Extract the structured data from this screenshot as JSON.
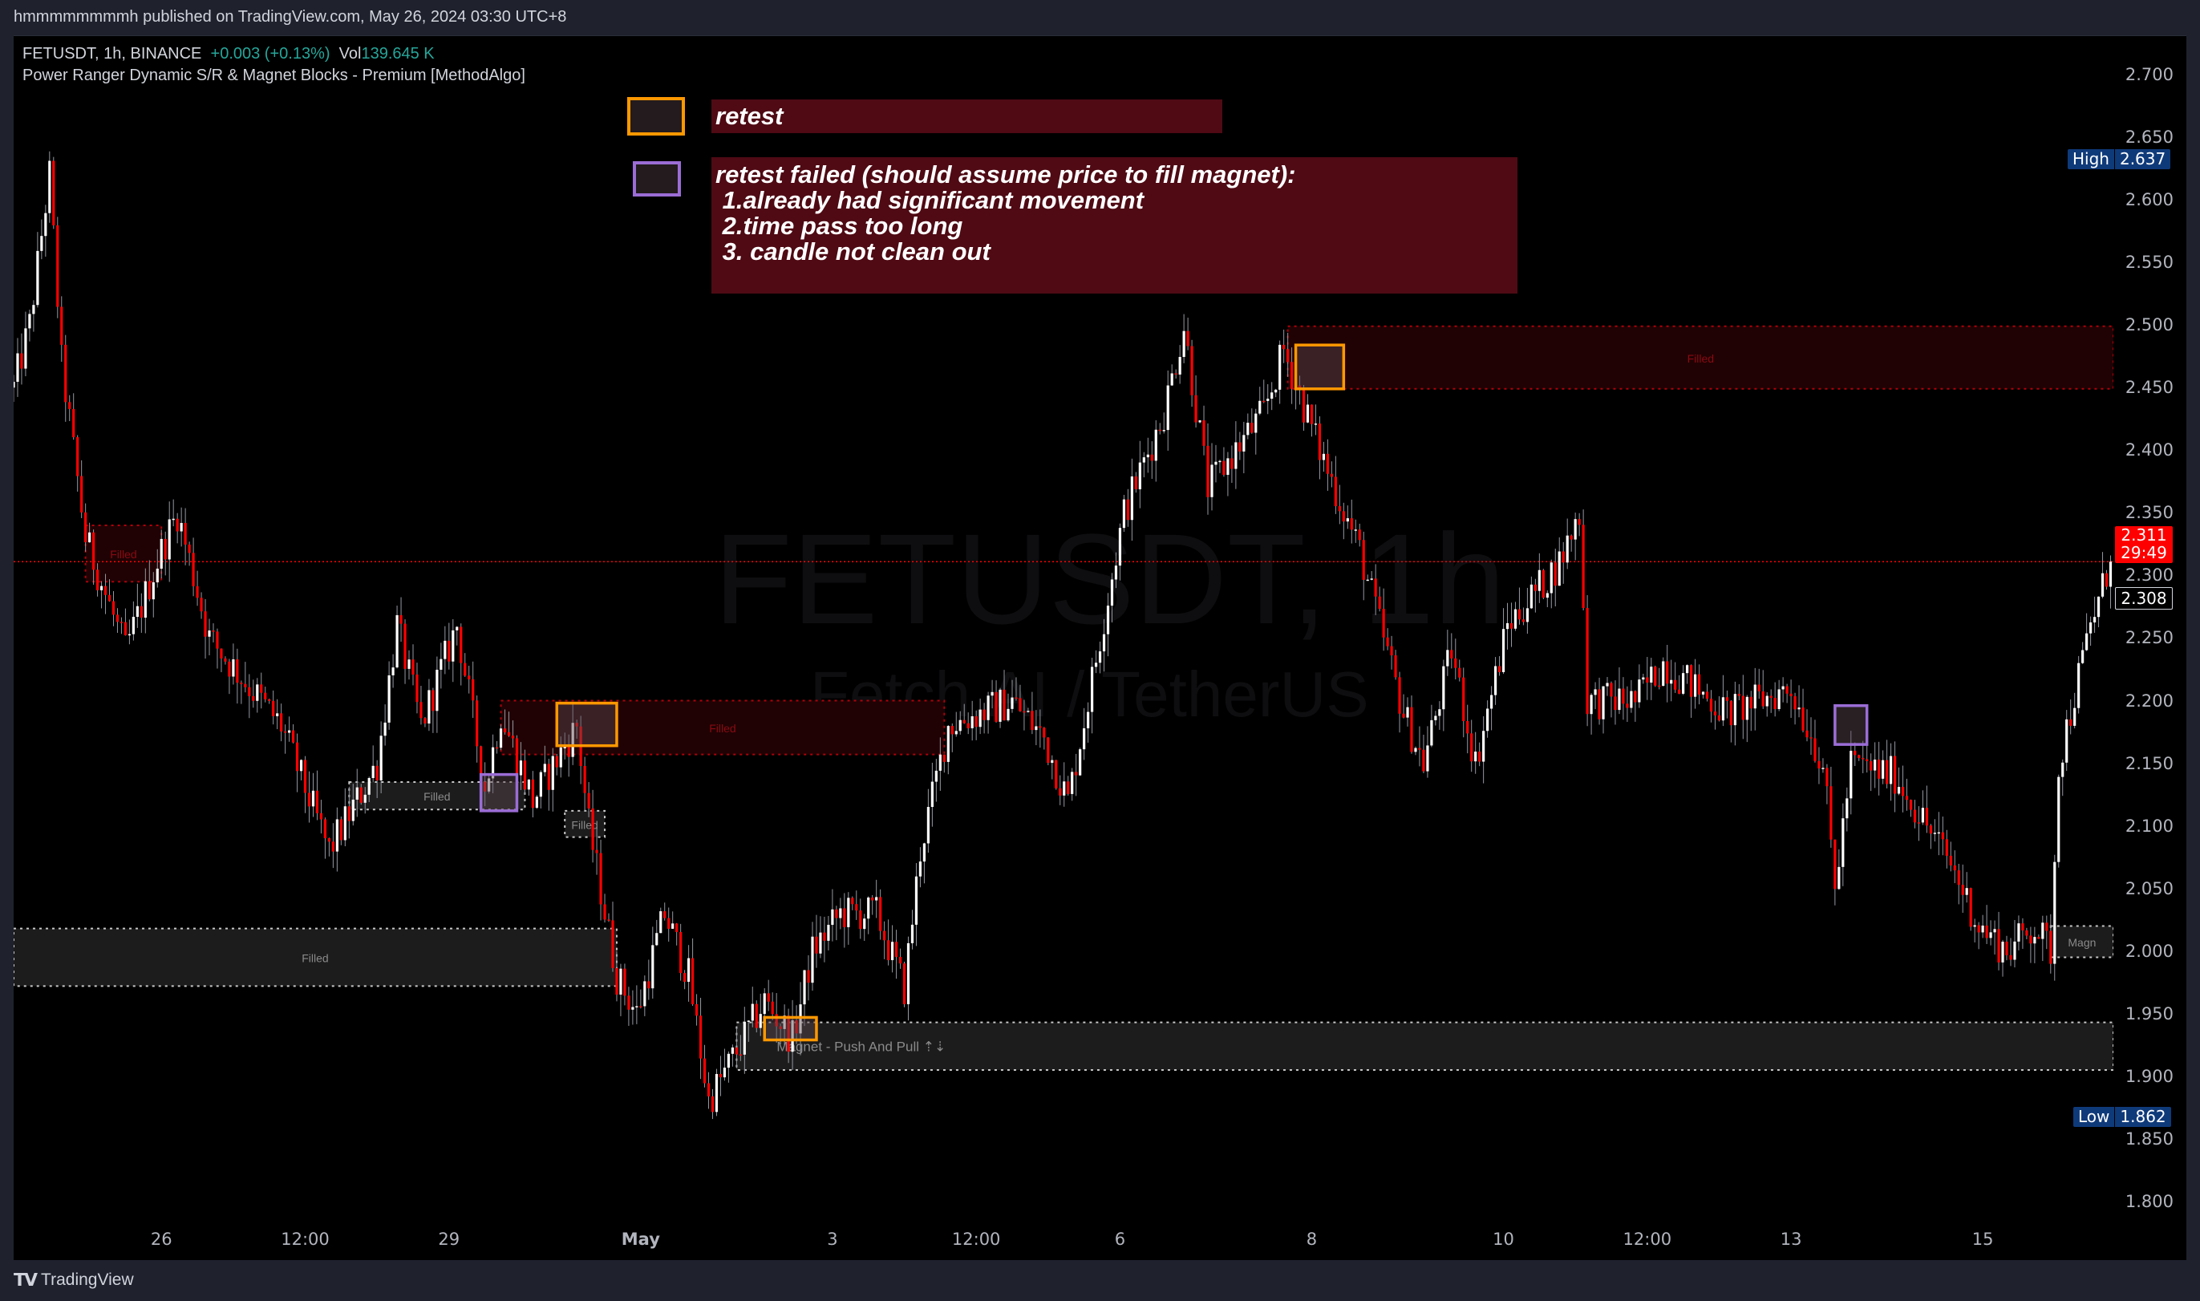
{
  "header": {
    "published": "hmmmmmmmmh published on TradingView.com, May 26, 2024 03:30 UTC+8"
  },
  "legend": {
    "symbol": "FETUSDT, 1h, BINANCE",
    "change": "+0.003 (+0.13%)",
    "vol_label": "Vol",
    "vol_value": "139.645 K",
    "indicator": "Power Ranger Dynamic S/R & Magnet Blocks - Premium [MethodAlgo]"
  },
  "watermark": {
    "line1": "FETUSDT, 1h",
    "line2": "Fetch.AI / TetherUS"
  },
  "notes": {
    "retest": "retest",
    "retest_failed": "retest failed (should assume price to fill magnet):\n 1.already had significant movement\n 2.time pass too long\n 3. candle not clean out"
  },
  "colors": {
    "up": "#ffffff",
    "down": "#ff0000",
    "retest_box": "#ff9800",
    "failed_box": "#9b6dd6",
    "note_bg": "#4f0a14",
    "accent_up_text": "#26a69a"
  },
  "price_scale": {
    "high_label": "High",
    "high_value": "2.637",
    "low_label": "Low",
    "low_value": "1.862",
    "current_price": "2.311",
    "countdown": "29:49",
    "prev_close": "2.308"
  },
  "footer": {
    "brand": "TradingView",
    "logo": "TV"
  },
  "chart_data": {
    "type": "candlestick",
    "symbol": "FETUSDT",
    "interval": "1h",
    "ylim": [
      1.78,
      2.72
    ],
    "y_ticks": [
      "2.700",
      "2.650",
      "2.600",
      "2.550",
      "2.500",
      "2.450",
      "2.400",
      "2.350",
      "2.300",
      "2.250",
      "2.200",
      "2.150",
      "2.100",
      "2.050",
      "2.000",
      "1.950",
      "1.900",
      "1.850",
      "1.800"
    ],
    "x_ticks": [
      {
        "label": "26",
        "time": "2024-04-26 00:00"
      },
      {
        "label": "12:00",
        "time": "2024-04-27 12:00"
      },
      {
        "label": "29",
        "time": "2024-04-29 00:00"
      },
      {
        "label": "May",
        "time": "2024-05-01 00:00"
      },
      {
        "label": "3",
        "time": "2024-05-03 00:00"
      },
      {
        "label": "12:00",
        "time": "2024-05-04 12:00"
      },
      {
        "label": "6",
        "time": "2024-05-06 00:00"
      },
      {
        "label": "8",
        "time": "2024-05-08 00:00"
      },
      {
        "label": "10",
        "time": "2024-05-10 00:00"
      },
      {
        "label": "12:00",
        "time": "2024-05-11 12:00"
      },
      {
        "label": "13",
        "time": "2024-05-13 00:00"
      },
      {
        "label": "15",
        "time": "2024-05-15 00:00"
      }
    ],
    "price_path": [
      [
        "2024-04-24 11:00",
        2.45
      ],
      [
        "2024-04-24 15:00",
        2.5
      ],
      [
        "2024-04-24 20:00",
        2.62
      ],
      [
        "2024-04-24 23:00",
        2.47
      ],
      [
        "2024-04-25 05:00",
        2.33
      ],
      [
        "2024-04-25 15:00",
        2.24
      ],
      [
        "2024-04-26 00:00",
        2.32
      ],
      [
        "2024-04-26 04:00",
        2.35
      ],
      [
        "2024-04-26 12:00",
        2.25
      ],
      [
        "2024-04-27 06:00",
        2.18
      ],
      [
        "2024-04-27 18:00",
        2.08
      ],
      [
        "2024-04-28 06:00",
        2.15
      ],
      [
        "2024-04-28 11:00",
        2.26
      ],
      [
        "2024-04-28 17:00",
        2.18
      ],
      [
        "2024-04-29 02:00",
        2.26
      ],
      [
        "2024-04-29 09:00",
        2.13
      ],
      [
        "2024-04-29 13:00",
        2.19
      ],
      [
        "2024-04-29 21:00",
        2.12
      ],
      [
        "2024-04-30 08:00",
        2.18
      ],
      [
        "2024-04-30 11:00",
        2.1
      ],
      [
        "2024-04-30 18:00",
        1.98
      ],
      [
        "2024-04-30 23:00",
        1.95
      ],
      [
        "2024-05-01 06:00",
        2.03
      ],
      [
        "2024-05-01 12:00",
        1.98
      ],
      [
        "2024-05-01 17:00",
        1.88
      ],
      [
        "2024-05-02 00:00",
        1.92
      ],
      [
        "2024-05-02 07:00",
        1.96
      ],
      [
        "2024-05-02 14:00",
        1.93
      ],
      [
        "2024-05-02 19:00",
        2.0
      ],
      [
        "2024-05-03 02:00",
        2.03
      ],
      [
        "2024-05-03 11:00",
        2.03
      ],
      [
        "2024-05-03 18:00",
        1.97
      ],
      [
        "2024-05-03 22:00",
        2.08
      ],
      [
        "2024-05-04 05:00",
        2.18
      ],
      [
        "2024-05-04 21:00",
        2.2
      ],
      [
        "2024-05-05 05:00",
        2.17
      ],
      [
        "2024-05-05 11:00",
        2.12
      ],
      [
        "2024-05-05 16:00",
        2.2
      ],
      [
        "2024-05-06 01:00",
        2.35
      ],
      [
        "2024-05-06 11:00",
        2.43
      ],
      [
        "2024-05-06 16:00",
        2.5
      ],
      [
        "2024-05-06 22:00",
        2.37
      ],
      [
        "2024-05-07 12:00",
        2.43
      ],
      [
        "2024-05-07 17:00",
        2.48
      ],
      [
        "2024-05-08 02:00",
        2.4
      ],
      [
        "2024-05-08 12:00",
        2.32
      ],
      [
        "2024-05-08 23:00",
        2.19
      ],
      [
        "2024-05-09 04:00",
        2.15
      ],
      [
        "2024-05-09 11:00",
        2.24
      ],
      [
        "2024-05-09 17:00",
        2.15
      ],
      [
        "2024-05-10 01:00",
        2.26
      ],
      [
        "2024-05-10 14:00",
        2.31
      ],
      [
        "2024-05-10 19:00",
        2.35
      ],
      [
        "2024-05-10 21:00",
        2.2
      ],
      [
        "2024-05-11 09:00",
        2.2
      ],
      [
        "2024-05-11 16:00",
        2.23
      ],
      [
        "2024-05-12 08:00",
        2.19
      ],
      [
        "2024-05-13 00:00",
        2.21
      ],
      [
        "2024-05-13 08:00",
        2.15
      ],
      [
        "2024-05-13 11:00",
        2.05
      ],
      [
        "2024-05-13 15:00",
        2.15
      ],
      [
        "2024-05-14 02:00",
        2.14
      ],
      [
        "2024-05-14 16:00",
        2.07
      ],
      [
        "2024-05-14 23:00",
        2.02
      ],
      [
        "2024-05-15 06:00",
        2.0
      ],
      [
        "2024-05-15 13:00",
        2.02
      ],
      [
        "2024-05-15 17:00",
        2.0
      ],
      [
        "2024-05-15 19:00",
        2.15
      ],
      [
        "2024-05-16 03:00",
        2.26
      ],
      [
        "2024-05-16 08:00",
        2.311
      ]
    ],
    "zones": [
      {
        "kind": "supply",
        "label": "Filled",
        "start": "2024-04-25 05:00",
        "end": "2024-04-26 00:00",
        "top": 2.34,
        "bottom": 2.295
      },
      {
        "kind": "supply",
        "label": "Filled",
        "start": "2024-04-29 13:00",
        "end": "2024-05-04 04:00",
        "top": 2.2,
        "bottom": 2.157
      },
      {
        "kind": "supply",
        "label": "Filled",
        "start": "2024-05-07 18:00",
        "end": "right",
        "top": 2.499,
        "bottom": 2.449
      },
      {
        "kind": "magnet",
        "label": "Filled",
        "start": "2024-04-27 23:00",
        "end": "2024-04-29 19:00",
        "top": 2.135,
        "bottom": 2.113
      },
      {
        "kind": "magnet",
        "label": "Filled",
        "start": "2024-04-30 05:00",
        "end": "2024-04-30 15:00",
        "top": 2.112,
        "bottom": 2.091
      },
      {
        "kind": "magnet",
        "label": "Filled",
        "start": "left",
        "end": "2024-04-30 18:00",
        "top": 2.018,
        "bottom": 1.972
      },
      {
        "kind": "magnet",
        "label": "Magnet - Push And Pull ⇡⇣",
        "start": "2024-05-02 00:00",
        "end": "right",
        "top": 1.943,
        "bottom": 1.905
      },
      {
        "kind": "magnet",
        "label": "Magn",
        "start": "2024-05-15 17:00",
        "end": "right",
        "top": 2.02,
        "bottom": 1.995
      }
    ],
    "marker_boxes": [
      {
        "kind": "retest",
        "start": "2024-04-30 03:00",
        "end": "2024-04-30 18:00",
        "top": 2.198,
        "bottom": 2.164
      },
      {
        "kind": "retest",
        "start": "2024-05-02 07:00",
        "end": "2024-05-02 20:00",
        "top": 1.947,
        "bottom": 1.929
      },
      {
        "kind": "retest",
        "start": "2024-05-07 20:00",
        "end": "2024-05-08 08:00",
        "top": 2.484,
        "bottom": 2.449
      },
      {
        "kind": "retest_failed",
        "start": "2024-04-29 08:00",
        "end": "2024-04-29 17:00",
        "top": 2.141,
        "bottom": 2.112
      },
      {
        "kind": "retest_failed",
        "start": "2024-05-13 11:00",
        "end": "2024-05-13 19:00",
        "top": 2.196,
        "bottom": 2.165
      }
    ],
    "current_price_line": 2.311
  }
}
